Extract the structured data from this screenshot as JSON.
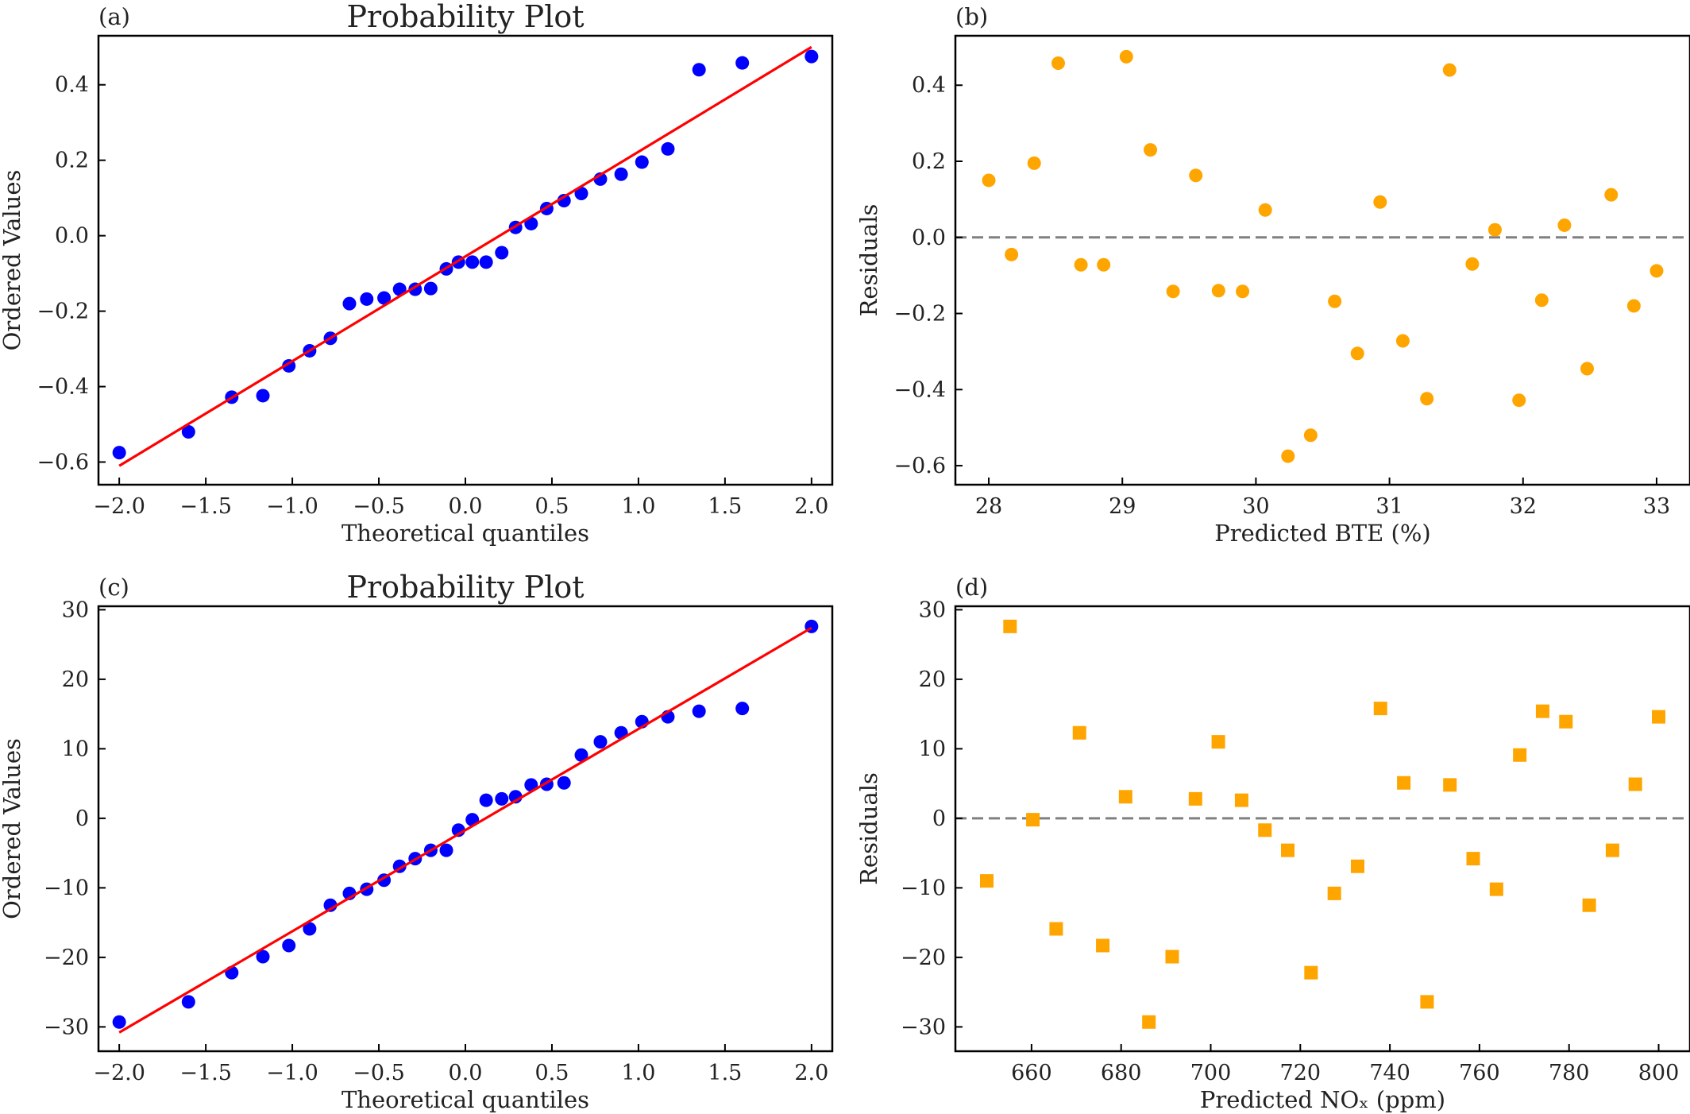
{
  "colors": {
    "scatter_blue": "#0000ff",
    "fit_red": "#ff0000",
    "residual_orange": "#ffa500",
    "zero_line": "#808080",
    "axes": "#000000"
  },
  "chart_data": [
    {
      "id": "a",
      "panel_letter": "(a)",
      "type": "scatter",
      "title": "Probability Plot",
      "xlabel": "Theoretical quantiles",
      "ylabel": "Ordered Values",
      "xlim": [
        -2.12,
        2.12
      ],
      "ylim": [
        -0.66,
        0.53
      ],
      "xticks": [
        -2.0,
        -1.5,
        -1.0,
        -0.5,
        0.0,
        0.5,
        1.0,
        1.5,
        2.0
      ],
      "xtick_labels": [
        "−2.0",
        "−1.5",
        "−1.0",
        "−0.5",
        "0.0",
        "0.5",
        "1.0",
        "1.5",
        "2.0"
      ],
      "yticks": [
        -0.6,
        -0.4,
        -0.2,
        0.0,
        0.2,
        0.4
      ],
      "ytick_labels": [
        "−0.6",
        "−0.4",
        "−0.2",
        "0.0",
        "0.2",
        "0.4"
      ],
      "grid": false,
      "marker": "circle",
      "marker_color": "#0000ff",
      "series": [
        {
          "points": [
            [
              -2.0,
              -0.575
            ],
            [
              -1.6,
              -0.52
            ],
            [
              -1.35,
              -0.428
            ],
            [
              -1.17,
              -0.424
            ],
            [
              -1.02,
              -0.345
            ],
            [
              -0.9,
              -0.305
            ],
            [
              -0.78,
              -0.272
            ],
            [
              -0.67,
              -0.18
            ],
            [
              -0.57,
              -0.168
            ],
            [
              -0.47,
              -0.165
            ],
            [
              -0.38,
              -0.142
            ],
            [
              -0.29,
              -0.142
            ],
            [
              -0.2,
              -0.14
            ],
            [
              -0.11,
              -0.088
            ],
            [
              -0.04,
              -0.07
            ],
            [
              0.04,
              -0.07
            ],
            [
              0.12,
              -0.07
            ],
            [
              0.21,
              -0.045
            ],
            [
              0.29,
              0.022
            ],
            [
              0.38,
              0.032
            ],
            [
              0.47,
              0.072
            ],
            [
              0.57,
              0.093
            ],
            [
              0.67,
              0.112
            ],
            [
              0.78,
              0.15
            ],
            [
              0.9,
              0.163
            ],
            [
              1.02,
              0.195
            ],
            [
              1.17,
              0.23
            ],
            [
              1.35,
              0.44
            ],
            [
              1.6,
              0.458
            ],
            [
              2.0,
              0.475
            ]
          ]
        }
      ],
      "fit_line": {
        "x": [
          -2.0,
          2.0
        ],
        "y": [
          -0.61,
          0.5
        ]
      }
    },
    {
      "id": "b",
      "panel_letter": "(b)",
      "type": "scatter",
      "title": "",
      "xlabel": "Predicted BTE (%)",
      "ylabel": "Residuals",
      "xlim": [
        27.75,
        33.25
      ],
      "ylim": [
        -0.65,
        0.53
      ],
      "xticks": [
        28,
        29,
        30,
        31,
        32,
        33
      ],
      "xtick_labels": [
        "28",
        "29",
        "30",
        "31",
        "32",
        "33"
      ],
      "yticks": [
        -0.6,
        -0.4,
        -0.2,
        0.0,
        0.2,
        0.4
      ],
      "ytick_labels": [
        "−0.6",
        "−0.4",
        "−0.2",
        "0.0",
        "0.2",
        "0.4"
      ],
      "grid": false,
      "marker": "circle",
      "marker_color": "#ffa500",
      "zero_line": 0,
      "series": [
        {
          "points": [
            [
              28.0,
              0.15
            ],
            [
              28.17,
              -0.045
            ],
            [
              28.34,
              0.195
            ],
            [
              28.52,
              0.458
            ],
            [
              28.69,
              -0.072
            ],
            [
              28.86,
              -0.072
            ],
            [
              29.03,
              0.475
            ],
            [
              29.21,
              0.23
            ],
            [
              29.38,
              -0.142
            ],
            [
              29.55,
              0.163
            ],
            [
              29.72,
              -0.14
            ],
            [
              29.9,
              -0.142
            ],
            [
              30.07,
              0.072
            ],
            [
              30.24,
              -0.575
            ],
            [
              30.41,
              -0.52
            ],
            [
              30.59,
              -0.168
            ],
            [
              30.76,
              -0.305
            ],
            [
              30.93,
              0.093
            ],
            [
              31.1,
              -0.272
            ],
            [
              31.28,
              -0.424
            ],
            [
              31.45,
              0.44
            ],
            [
              31.62,
              -0.07
            ],
            [
              31.79,
              0.02
            ],
            [
              31.97,
              -0.428
            ],
            [
              32.14,
              -0.165
            ],
            [
              32.31,
              0.032
            ],
            [
              32.48,
              -0.345
            ],
            [
              32.66,
              0.112
            ],
            [
              32.83,
              -0.18
            ],
            [
              33.0,
              -0.088
            ]
          ]
        }
      ]
    },
    {
      "id": "c",
      "panel_letter": "(c)",
      "type": "scatter",
      "title": "Probability Plot",
      "xlabel": "Theoretical quantiles",
      "ylabel": "Ordered Values",
      "xlim": [
        -2.12,
        2.12
      ],
      "ylim": [
        -33.5,
        30.5
      ],
      "xticks": [
        -2.0,
        -1.5,
        -1.0,
        -0.5,
        0.0,
        0.5,
        1.0,
        1.5,
        2.0
      ],
      "xtick_labels": [
        "−2.0",
        "−1.5",
        "−1.0",
        "−0.5",
        "0.0",
        "0.5",
        "1.0",
        "1.5",
        "2.0"
      ],
      "yticks": [
        -30,
        -20,
        -10,
        0,
        10,
        20,
        30
      ],
      "ytick_labels": [
        "−30",
        "−20",
        "−10",
        "0",
        "10",
        "20",
        "30"
      ],
      "grid": false,
      "marker": "circle",
      "marker_color": "#0000ff",
      "series": [
        {
          "points": [
            [
              -2.0,
              -29.3
            ],
            [
              -1.6,
              -26.4
            ],
            [
              -1.35,
              -22.2
            ],
            [
              -1.17,
              -19.9
            ],
            [
              -1.02,
              -18.3
            ],
            [
              -0.9,
              -15.9
            ],
            [
              -0.78,
              -12.5
            ],
            [
              -0.67,
              -10.8
            ],
            [
              -0.57,
              -10.2
            ],
            [
              -0.47,
              -8.9
            ],
            [
              -0.38,
              -6.9
            ],
            [
              -0.29,
              -5.8
            ],
            [
              -0.2,
              -4.6
            ],
            [
              -0.11,
              -4.6
            ],
            [
              -0.04,
              -1.7
            ],
            [
              0.04,
              -0.2
            ],
            [
              0.12,
              2.6
            ],
            [
              0.21,
              2.8
            ],
            [
              0.29,
              3.1
            ],
            [
              0.38,
              4.8
            ],
            [
              0.47,
              4.9
            ],
            [
              0.57,
              5.1
            ],
            [
              0.67,
              9.1
            ],
            [
              0.78,
              11.0
            ],
            [
              0.9,
              12.3
            ],
            [
              1.02,
              13.9
            ],
            [
              1.17,
              14.6
            ],
            [
              1.35,
              15.4
            ],
            [
              1.6,
              15.8
            ],
            [
              2.0,
              27.6
            ]
          ]
        }
      ],
      "fit_line": {
        "x": [
          -2.0,
          2.0
        ],
        "y": [
          -30.8,
          27.4
        ]
      }
    },
    {
      "id": "d",
      "panel_letter": "(d)",
      "type": "scatter",
      "title": "",
      "xlabel": "Predicted NOₓ (ppm)",
      "ylabel": "Residuals",
      "xlim": [
        643,
        807
      ],
      "ylim": [
        -33.5,
        30.5
      ],
      "xticks": [
        660,
        680,
        700,
        720,
        740,
        760,
        780,
        800
      ],
      "xtick_labels": [
        "660",
        "680",
        "700",
        "720",
        "740",
        "760",
        "780",
        "800"
      ],
      "yticks": [
        -30,
        -20,
        -10,
        0,
        10,
        20,
        30
      ],
      "ytick_labels": [
        "−30",
        "−20",
        "−10",
        "0",
        "10",
        "20",
        "30"
      ],
      "grid": false,
      "marker": "square",
      "marker_color": "#ffa500",
      "zero_line": 0,
      "series": [
        {
          "points": [
            [
              650.0,
              -9.0
            ],
            [
              655.2,
              27.6
            ],
            [
              660.3,
              -0.2
            ],
            [
              665.5,
              -15.9
            ],
            [
              670.7,
              12.3
            ],
            [
              675.9,
              -18.3
            ],
            [
              681.0,
              3.1
            ],
            [
              686.2,
              -29.3
            ],
            [
              691.4,
              -19.9
            ],
            [
              696.6,
              2.8
            ],
            [
              701.7,
              11.0
            ],
            [
              706.9,
              2.6
            ],
            [
              712.1,
              -1.7
            ],
            [
              717.2,
              -4.6
            ],
            [
              722.4,
              -22.2
            ],
            [
              727.6,
              -10.8
            ],
            [
              732.8,
              -6.9
            ],
            [
              737.9,
              15.8
            ],
            [
              743.1,
              5.1
            ],
            [
              748.3,
              -26.4
            ],
            [
              753.4,
              4.8
            ],
            [
              758.6,
              -5.8
            ],
            [
              763.8,
              -10.2
            ],
            [
              769.0,
              9.1
            ],
            [
              774.1,
              15.4
            ],
            [
              779.3,
              13.9
            ],
            [
              784.5,
              -12.5
            ],
            [
              789.7,
              -4.6
            ],
            [
              794.8,
              4.9
            ],
            [
              800.0,
              14.6
            ]
          ]
        }
      ]
    }
  ]
}
